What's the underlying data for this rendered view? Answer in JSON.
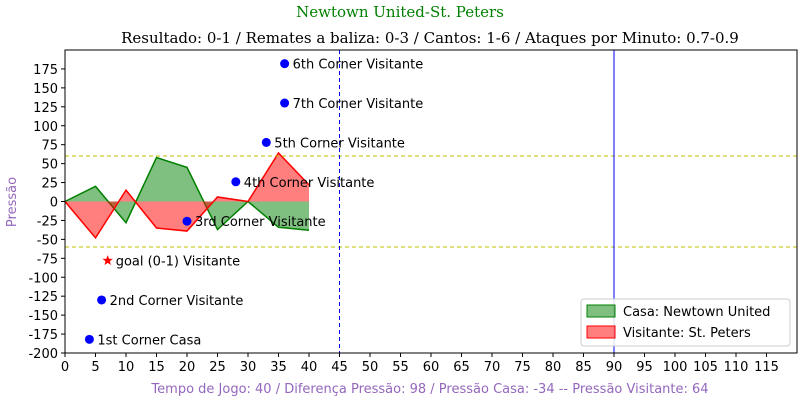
{
  "chart_data": {
    "type": "area",
    "title": "Newtown United-St. Peters",
    "subtitle": "Resultado: 0-1 / Remates a baliza: 0-3 / Cantos: 1-6 / Ataques por Minuto: 0.7-0.9",
    "xlabel": "Tempo de Jogo: 40 / Diferença Pressão: 98 / Pressão Casa: -34 -- Pressão Visitante: 64",
    "ylabel": "Pressão",
    "xlim": [
      0,
      120
    ],
    "ylim": [
      -200,
      200
    ],
    "xticks": [
      "0",
      "5",
      "10",
      "15",
      "20",
      "25",
      "30",
      "35",
      "40",
      "45",
      "50",
      "55",
      "60",
      "65",
      "70",
      "75",
      "80",
      "85",
      "90",
      "95",
      "100",
      "105",
      "110",
      "115"
    ],
    "yticks": [
      "-200",
      "-175",
      "-150",
      "-125",
      "-100",
      "-75",
      "-50",
      "-25",
      "0",
      "25",
      "50",
      "75",
      "100",
      "125",
      "150",
      "175"
    ],
    "grid": false,
    "legend_position": "lower-right",
    "series": [
      {
        "name": "Casa: Newtown United",
        "color": "#008000",
        "x": [
          0,
          5,
          10,
          15,
          20,
          25,
          30,
          35,
          40
        ],
        "values": [
          0,
          20,
          -28,
          58,
          45,
          -37,
          0,
          -34,
          -38
        ]
      },
      {
        "name": "Visitante: St. Peters",
        "color": "#ff0000",
        "x": [
          0,
          5,
          10,
          15,
          20,
          25,
          30,
          35,
          40
        ],
        "values": [
          0,
          -48,
          15,
          -35,
          -39,
          6,
          0,
          64,
          22
        ]
      }
    ],
    "reference_lines": [
      {
        "orientation": "horizontal",
        "value": 60,
        "color": "#bfbf00",
        "style": "dashed"
      },
      {
        "orientation": "horizontal",
        "value": -60,
        "color": "#bfbf00",
        "style": "dashed"
      },
      {
        "orientation": "vertical",
        "value": 45,
        "color": "#0000ff",
        "style": "dashed"
      },
      {
        "orientation": "vertical",
        "value": 90,
        "color": "#0000ff",
        "style": "solid"
      }
    ],
    "events": [
      {
        "x": 4,
        "y": -182,
        "marker": "circle",
        "color": "#0000ff",
        "label": "1st Corner Casa"
      },
      {
        "x": 6,
        "y": -130,
        "marker": "circle",
        "color": "#0000ff",
        "label": "2nd Corner Visitante"
      },
      {
        "x": 7,
        "y": -78,
        "marker": "star",
        "color": "#ff0000",
        "label": "goal (0-1) Visitante"
      },
      {
        "x": 20,
        "y": -26,
        "marker": "circle",
        "color": "#0000ff",
        "label": "3rd Corner Visitante"
      },
      {
        "x": 28,
        "y": 26,
        "marker": "circle",
        "color": "#0000ff",
        "label": "4th Corner Visitante"
      },
      {
        "x": 33,
        "y": 78,
        "marker": "circle",
        "color": "#0000ff",
        "label": "5th Corner Visitante"
      },
      {
        "x": 36,
        "y": 182,
        "marker": "circle",
        "color": "#0000ff",
        "label": "6th Corner Visitante"
      },
      {
        "x": 36,
        "y": 130,
        "marker": "circle",
        "color": "#0000ff",
        "label": "7th Corner Visitante"
      }
    ]
  }
}
